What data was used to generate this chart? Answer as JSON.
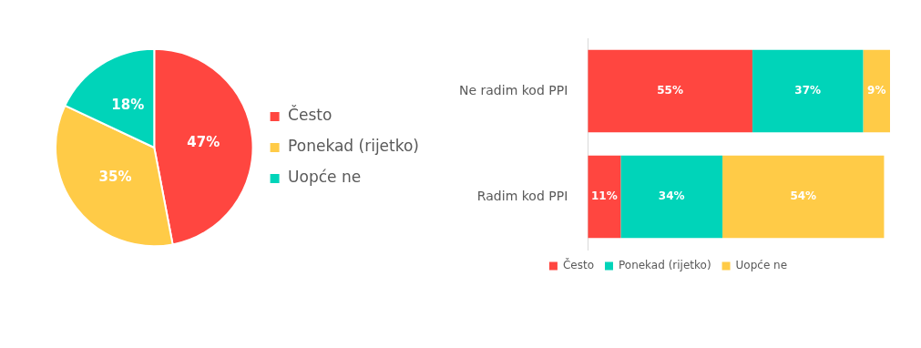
{
  "chart_data": [
    {
      "type": "pie",
      "categories": [
        "Često",
        "Ponekad (rijetko)",
        "Uopće ne"
      ],
      "values": [
        47,
        35,
        18
      ],
      "colors": [
        "#ff4640",
        "#ffcb47",
        "#00d4b9"
      ],
      "value_labels": [
        "47%",
        "35%",
        "18%"
      ],
      "legend": "right"
    },
    {
      "type": "bar",
      "orientation": "horizontal",
      "stacked": true,
      "categories": [
        "Ne radim kod PPI",
        "Radim kod PPI"
      ],
      "series": [
        {
          "name": "Često",
          "color": "#ff4640",
          "values": [
            55,
            11
          ],
          "value_labels": [
            "55%",
            "11%"
          ]
        },
        {
          "name": "Ponekad (rijetko)",
          "color": "#00d4b9",
          "values": [
            37,
            34
          ],
          "value_labels": [
            "37%",
            "34%"
          ]
        },
        {
          "name": "Uopće ne",
          "color": "#ffcb47",
          "values": [
            9,
            54
          ],
          "value_labels": [
            "9%",
            "54%"
          ]
        }
      ],
      "legend": "bottom"
    }
  ]
}
